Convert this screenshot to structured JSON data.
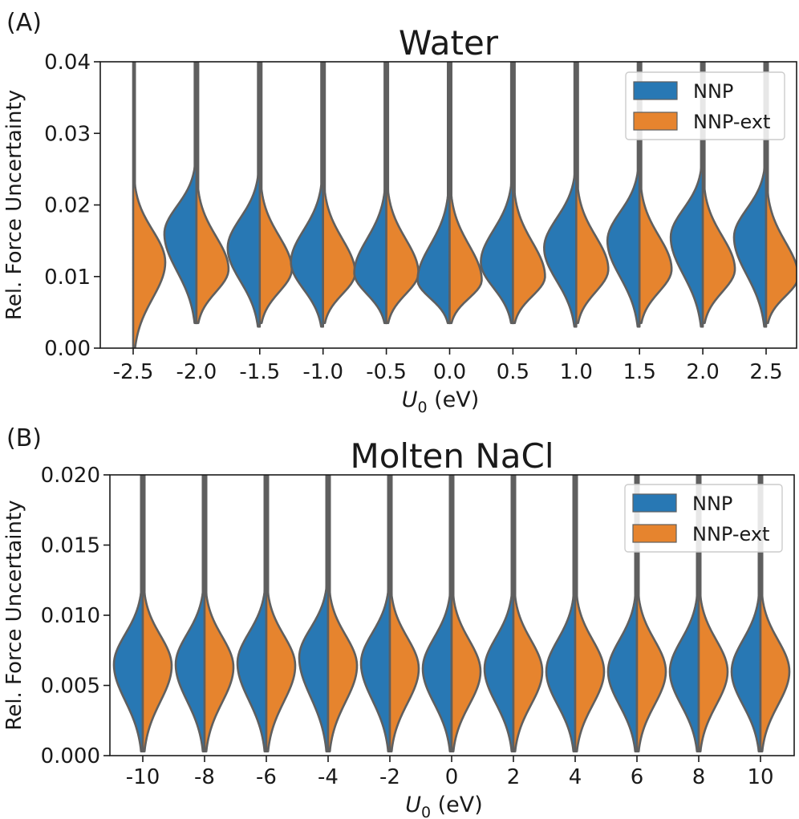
{
  "panels": [
    {
      "label": "(A)",
      "chart_data": {
        "type": "violin",
        "title": "Water",
        "xlabel_main": "U",
        "xlabel_sub": "0",
        "xlabel_tail": " (eV)",
        "ylabel": "Rel. Force Uncertainty",
        "ylim": [
          0,
          0.04
        ],
        "yticks": [
          "0.00",
          "0.01",
          "0.02",
          "0.03",
          "0.04"
        ],
        "categories": [
          "-2.5",
          "-2.0",
          "-1.5",
          "-1.0",
          "-0.5",
          "0.0",
          "0.5",
          "1.0",
          "1.5",
          "2.0",
          "2.5"
        ],
        "legend_position": "top-right",
        "split": true,
        "series": [
          {
            "name": "NNP",
            "color": "#2878b4",
            "mode": [
              null,
              0.016,
              0.014,
              0.012,
              0.0105,
              0.0095,
              0.012,
              0.014,
              0.015,
              0.0155,
              0.0155
            ],
            "min": [
              null,
              0.0035,
              0.003,
              0.003,
              0.0035,
              0.0035,
              0.0035,
              0.003,
              0.003,
              0.003,
              0.003
            ],
            "max": [
              null,
              0.04,
              0.04,
              0.04,
              0.04,
              0.04,
              0.04,
              0.04,
              0.04,
              0.04,
              0.04
            ]
          },
          {
            "name": "NNP-ext",
            "color": "#e6842e",
            "mode": [
              0.012,
              0.011,
              0.011,
              0.0105,
              0.0105,
              0.0095,
              0.01,
              0.011,
              0.011,
              0.011,
              0.01
            ],
            "min": [
              0.0,
              0.0035,
              0.0035,
              0.0035,
              0.0035,
              0.0035,
              0.0035,
              0.0035,
              0.0035,
              0.0035,
              0.0035
            ],
            "max": [
              0.04,
              0.04,
              0.04,
              0.04,
              0.04,
              0.04,
              0.04,
              0.04,
              0.04,
              0.04,
              0.04
            ]
          }
        ]
      }
    },
    {
      "label": "(B)",
      "chart_data": {
        "type": "violin",
        "title": "Molten NaCl",
        "xlabel_main": "U",
        "xlabel_sub": "0",
        "xlabel_tail": " (eV)",
        "ylabel": "Rel. Force Uncertainty",
        "ylim": [
          0,
          0.02
        ],
        "yticks": [
          "0.000",
          "0.005",
          "0.010",
          "0.015",
          "0.020"
        ],
        "categories": [
          "-10",
          "-8",
          "-6",
          "-4",
          "-2",
          "0",
          "2",
          "4",
          "6",
          "8",
          "10"
        ],
        "legend_position": "top-right",
        "split": true,
        "series": [
          {
            "name": "NNP",
            "color": "#2878b4",
            "mode": [
              0.0065,
              0.0065,
              0.0066,
              0.007,
              0.0066,
              0.0062,
              0.0062,
              0.006,
              0.006,
              0.006,
              0.006
            ],
            "min": [
              0.0003,
              0.0003,
              0.0003,
              0.0003,
              0.0003,
              0.0003,
              0.0003,
              0.0003,
              0.0003,
              0.0003,
              0.0003
            ],
            "max": [
              0.02,
              0.02,
              0.02,
              0.02,
              0.02,
              0.02,
              0.02,
              0.02,
              0.02,
              0.02,
              0.02
            ]
          },
          {
            "name": "NNP-ext",
            "color": "#e6842e",
            "mode": [
              0.0064,
              0.0063,
              0.0064,
              0.0064,
              0.0062,
              0.006,
              0.006,
              0.006,
              0.006,
              0.006,
              0.006
            ],
            "min": [
              0.0003,
              0.0003,
              0.0003,
              0.0003,
              0.0003,
              0.0003,
              0.0003,
              0.0003,
              0.0003,
              0.0003,
              0.0003
            ],
            "max": [
              0.02,
              0.02,
              0.02,
              0.02,
              0.02,
              0.02,
              0.02,
              0.02,
              0.02,
              0.02,
              0.02
            ]
          }
        ]
      }
    }
  ]
}
